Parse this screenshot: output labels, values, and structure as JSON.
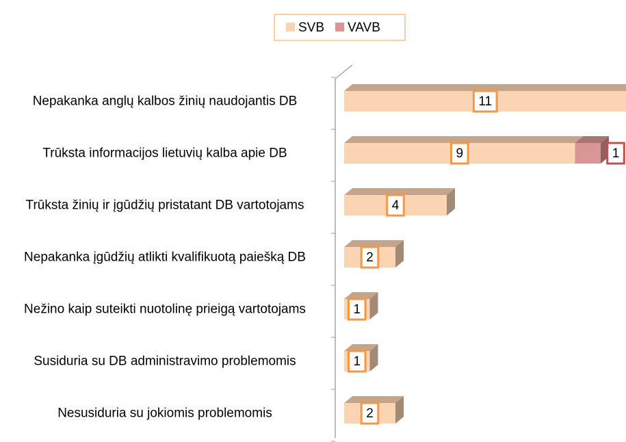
{
  "chart_data": {
    "type": "bar3d-stacked-horizontal",
    "categories": [
      "Nepakanka anglų kalbos žinių naudojantis DB",
      "Trūksta informacijos lietuvių kalba apie DB",
      "Trūksta žinių ir įgūdžių pristatant DB vartotojams",
      "Nepakanka įgūdžių atlikti kvalifikuotą paiešką DB",
      "Nežino kaip suteikti nuotolinę prieigą vartotojams",
      "Susiduria su DB administravimo problemomis",
      "Nesusiduria su jokiomis problemomis"
    ],
    "series": [
      {
        "name": "SVB",
        "color": "#fbd4b4",
        "label_color": "#f79646",
        "values": [
          11,
          9,
          4,
          2,
          1,
          1,
          2
        ]
      },
      {
        "name": "VAVB",
        "color": "#d99694",
        "label_color": "#c0504d",
        "values": [
          null,
          1,
          null,
          null,
          null,
          null,
          null
        ]
      }
    ],
    "legend": "top"
  }
}
